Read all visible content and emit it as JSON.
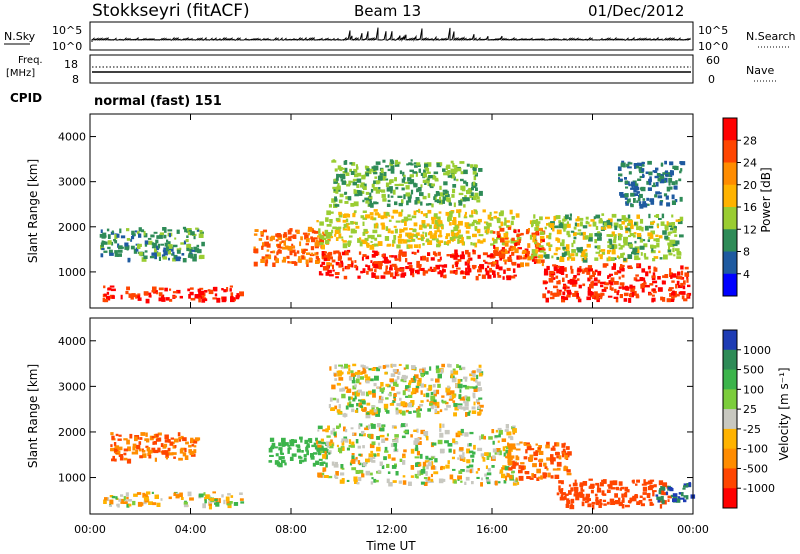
{
  "header": {
    "station": "Stokkseyri (fitACF)",
    "beam": "Beam 13",
    "date": "01/Dec/2012"
  },
  "top_panels": {
    "nsky_label": "N.Sky",
    "nsky_ticks": [
      "10^5",
      "10^0"
    ],
    "nsearch_label": "N.Search",
    "nsearch_ticks": [
      "10^5",
      "10^0"
    ],
    "freq_label_1": "Freq.",
    "freq_label_2": "[MHz]",
    "freq_ticks": [
      "18",
      "8"
    ],
    "nave_label": "Nave",
    "nave_ticks": [
      "60",
      "0"
    ],
    "cpid_label": "CPID",
    "cpid_text": "normal (fast) 151"
  },
  "chart_data": [
    {
      "type": "heatmap",
      "name": "power",
      "ylabel": "Slant Range [km]",
      "ylim": [
        200,
        4500
      ],
      "yticks": [
        "1000",
        "2000",
        "3000",
        "4000"
      ],
      "colorbar_label": "Power [dB]",
      "colorbar_ticks": [
        "28",
        "24",
        "20",
        "16",
        "12",
        "8",
        "4"
      ],
      "colorbar_colors": [
        "#ff0000",
        "#ff4500",
        "#ff8c00",
        "#ffb300",
        "#9acd32",
        "#2e8b57",
        "#1e5aa0",
        "#0000ff"
      ],
      "regions": [
        {
          "x0": 0.5,
          "x1": 6.0,
          "y0": 400,
          "y1": 700,
          "value": 26
        },
        {
          "x0": 0.3,
          "x1": 4.5,
          "y0": 1300,
          "y1": 2000,
          "value": 8
        },
        {
          "x0": 6.5,
          "x1": 9.5,
          "y0": 1200,
          "y1": 2000,
          "value": 22
        },
        {
          "x0": 9.0,
          "x1": 17.0,
          "y0": 900,
          "y1": 1500,
          "value": 26
        },
        {
          "x0": 9.0,
          "x1": 17.0,
          "y0": 1600,
          "y1": 2400,
          "value": 14
        },
        {
          "x0": 9.5,
          "x1": 15.5,
          "y0": 2500,
          "y1": 3500,
          "value": 10
        },
        {
          "x0": 16.0,
          "x1": 18.0,
          "y0": 1200,
          "y1": 2000,
          "value": 24
        },
        {
          "x0": 18.0,
          "x1": 23.8,
          "y0": 400,
          "y1": 1200,
          "value": 26
        },
        {
          "x0": 17.5,
          "x1": 23.5,
          "y0": 1300,
          "y1": 2300,
          "value": 12
        },
        {
          "x0": 21.0,
          "x1": 23.5,
          "y0": 2500,
          "y1": 3500,
          "value": 6
        }
      ]
    },
    {
      "type": "heatmap",
      "name": "velocity",
      "ylabel": "Slant Range [km]",
      "xlabel": "Time UT",
      "ylim": [
        200,
        4500
      ],
      "yticks": [
        "1000",
        "2000",
        "3000",
        "4000"
      ],
      "xticks": [
        "00:00",
        "04:00",
        "08:00",
        "12:00",
        "16:00",
        "20:00",
        "00:00"
      ],
      "colorbar_label": "Velocity [m s⁻¹]",
      "colorbar_ticks": [
        "1000",
        "500",
        "100",
        "25",
        "-25",
        "-100",
        "-500",
        "-1000"
      ],
      "colorbar_colors": [
        "#1e3cb4",
        "#2e8b57",
        "#3cb44b",
        "#7ccd3c",
        "#c8c8c0",
        "#ffb300",
        "#ff8c00",
        "#ff4500",
        "#ff0000"
      ],
      "regions": [
        {
          "x0": 0.5,
          "x1": 6.0,
          "y0": 400,
          "y1": 700,
          "value": 0
        },
        {
          "x0": 0.8,
          "x1": 4.2,
          "y0": 1400,
          "y1": 2000,
          "value": -300
        },
        {
          "x0": 7.0,
          "x1": 9.5,
          "y0": 1300,
          "y1": 1900,
          "value": 200
        },
        {
          "x0": 9.0,
          "x1": 17.0,
          "y0": 900,
          "y1": 2200,
          "value": 0
        },
        {
          "x0": 9.5,
          "x1": 15.5,
          "y0": 2400,
          "y1": 3500,
          "value": 0
        },
        {
          "x0": 16.5,
          "x1": 19.0,
          "y0": 1000,
          "y1": 1800,
          "value": -300
        },
        {
          "x0": 18.5,
          "x1": 23.0,
          "y0": 400,
          "y1": 1000,
          "value": -400
        },
        {
          "x0": 22.5,
          "x1": 24.0,
          "y0": 500,
          "y1": 900,
          "value": 700
        }
      ]
    }
  ]
}
